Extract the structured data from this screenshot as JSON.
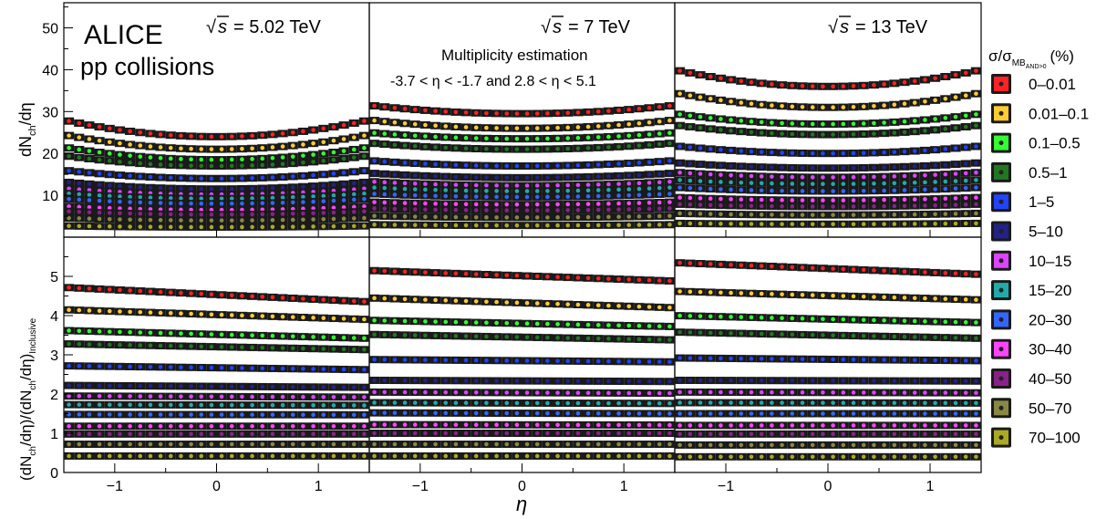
{
  "chart_data": {
    "type": "scatter",
    "figure_labels": {
      "experiment": "ALICE",
      "system": "pp collisions",
      "multiplicity_estimation_title": "Multiplicity estimation",
      "multiplicity_estimation_range": "-3.7 < η < -1.7 and 2.8 < η < 5.1",
      "x_axis_label": "η"
    },
    "y_axes": {
      "top": {
        "label_main": "dN",
        "label_sub": "ch",
        "label_tail": "/dη",
        "range": [
          0,
          56
        ],
        "ticks": [
          "10",
          "20",
          "30",
          "40",
          "50"
        ]
      },
      "bottom": {
        "label_open": "(dN",
        "label_sub1": "ch",
        "label_mid": "/dη)/(dN",
        "label_sub2": "ch",
        "label_close": "/dη)",
        "label_sub3": "Inclusive",
        "range": [
          0,
          6
        ],
        "ticks": [
          "1",
          "2",
          "3",
          "4",
          "5"
        ]
      }
    },
    "x_axis": {
      "range": [
        -1.5,
        1.5
      ],
      "ticks": [
        "−1",
        "0",
        "1"
      ]
    },
    "legend": {
      "title_main": "σ/σ",
      "title_sub": "MB",
      "title_subsub": "AND>0",
      "title_unit": "(%)",
      "placement": "right",
      "entries": [
        {
          "label": "0–0.01",
          "color": "#ff2222"
        },
        {
          "label": "0.01–0.1",
          "color": "#ffcc33"
        },
        {
          "label": "0.1–0.5",
          "color": "#33ff33"
        },
        {
          "label": "0.5–1",
          "color": "#227722"
        },
        {
          "label": "1–5",
          "color": "#2244ff"
        },
        {
          "label": "5–10",
          "color": "#222288"
        },
        {
          "label": "10–15",
          "color": "#dd44ff"
        },
        {
          "label": "15–20",
          "color": "#22aaaa"
        },
        {
          "label": "20–30",
          "color": "#3366ff"
        },
        {
          "label": "30–40",
          "color": "#ff44ff"
        },
        {
          "label": "40–50",
          "color": "#882288"
        },
        {
          "label": "50–70",
          "color": "#888844"
        },
        {
          "label": "70–100",
          "color": "#aaaa22"
        }
      ]
    },
    "panels": [
      {
        "energy_label": "= 5.02 TeV",
        "top_series": [
          {
            "class": "0–0.01",
            "center": 24.0,
            "edge": 28.0
          },
          {
            "class": "0.01–0.1",
            "center": 21.0,
            "edge": 24.5
          },
          {
            "class": "0.1–0.5",
            "center": 18.5,
            "edge": 21.5
          },
          {
            "class": "0.5–1",
            "center": 17.0,
            "edge": 19.5
          },
          {
            "class": "1–5",
            "center": 14.0,
            "edge": 16.0
          },
          {
            "class": "5–10",
            "center": 11.5,
            "edge": 13.2
          },
          {
            "class": "10–15",
            "center": 10.2,
            "edge": 11.7
          },
          {
            "class": "15–20",
            "center": 9.2,
            "edge": 10.5
          },
          {
            "class": "20–30",
            "center": 8.0,
            "edge": 9.2
          },
          {
            "class": "30–40",
            "center": 6.5,
            "edge": 7.4
          },
          {
            "class": "40–50",
            "center": 5.4,
            "edge": 6.2
          },
          {
            "class": "50–70",
            "center": 4.0,
            "edge": 4.6
          },
          {
            "class": "70–100",
            "center": 2.4,
            "edge": 2.7
          }
        ],
        "bottom_series": [
          {
            "class": "0–0.01",
            "left": 4.72,
            "right": 4.35
          },
          {
            "class": "0.01–0.1",
            "left": 4.15,
            "right": 3.9
          },
          {
            "class": "0.1–0.5",
            "left": 3.62,
            "right": 3.42
          },
          {
            "class": "0.5–1",
            "left": 3.28,
            "right": 3.13
          },
          {
            "class": "1–5",
            "left": 2.72,
            "right": 2.62
          },
          {
            "class": "5–10",
            "left": 2.22,
            "right": 2.17
          },
          {
            "class": "10–15",
            "left": 1.95,
            "right": 1.92
          },
          {
            "class": "15–20",
            "left": 1.73,
            "right": 1.71
          },
          {
            "class": "20–30",
            "left": 1.48,
            "right": 1.47
          },
          {
            "class": "30–40",
            "left": 1.18,
            "right": 1.18
          },
          {
            "class": "40–50",
            "left": 0.98,
            "right": 0.98
          },
          {
            "class": "50–70",
            "left": 0.72,
            "right": 0.72
          },
          {
            "class": "70–100",
            "left": 0.42,
            "right": 0.42
          }
        ]
      },
      {
        "energy_label": "= 7 TeV",
        "top_series": [
          {
            "class": "0–0.01",
            "center": 29.5,
            "edge": 31.5
          },
          {
            "class": "0.01–0.1",
            "center": 26.0,
            "edge": 28.0
          },
          {
            "class": "0.1–0.5",
            "center": 23.5,
            "edge": 25.0
          },
          {
            "class": "0.5–1",
            "center": 21.0,
            "edge": 22.5
          },
          {
            "class": "1–5",
            "center": 17.0,
            "edge": 18.3
          },
          {
            "class": "5–10",
            "center": 14.2,
            "edge": 15.3
          },
          {
            "class": "10–15",
            "center": 12.3,
            "edge": 13.3
          },
          {
            "class": "15–20",
            "center": 11.0,
            "edge": 11.9
          },
          {
            "class": "20–30",
            "center": 9.6,
            "edge": 10.4
          },
          {
            "class": "30–40",
            "center": 7.8,
            "edge": 8.4
          },
          {
            "class": "40–50",
            "center": 6.4,
            "edge": 6.9
          },
          {
            "class": "50–70",
            "center": 4.7,
            "edge": 5.1
          },
          {
            "class": "70–100",
            "center": 2.8,
            "edge": 3.0
          }
        ],
        "bottom_series": [
          {
            "class": "0–0.01",
            "left": 5.15,
            "right": 4.88
          },
          {
            "class": "0.01–0.1",
            "left": 4.45,
            "right": 4.2
          },
          {
            "class": "0.1–0.5",
            "left": 3.88,
            "right": 3.72
          },
          {
            "class": "0.5–1",
            "left": 3.52,
            "right": 3.38
          },
          {
            "class": "1–5",
            "left": 2.88,
            "right": 2.82
          },
          {
            "class": "5–10",
            "left": 2.35,
            "right": 2.32
          },
          {
            "class": "10–15",
            "left": 2.05,
            "right": 2.02
          },
          {
            "class": "15–20",
            "left": 1.78,
            "right": 1.76
          },
          {
            "class": "20–30",
            "left": 1.52,
            "right": 1.5
          },
          {
            "class": "30–40",
            "left": 1.22,
            "right": 1.21
          },
          {
            "class": "40–50",
            "left": 1.0,
            "right": 1.0
          },
          {
            "class": "50–70",
            "left": 0.72,
            "right": 0.72
          },
          {
            "class": "70–100",
            "left": 0.42,
            "right": 0.42
          }
        ]
      },
      {
        "energy_label": "= 13 TeV",
        "top_series": [
          {
            "class": "0–0.01",
            "center": 36.0,
            "edge": 40.0
          },
          {
            "class": "0.01–0.1",
            "center": 31.0,
            "edge": 34.5
          },
          {
            "class": "0.1–0.5",
            "center": 27.0,
            "edge": 29.5
          },
          {
            "class": "0.5–1",
            "center": 24.5,
            "edge": 26.8
          },
          {
            "class": "1–5",
            "center": 20.0,
            "edge": 21.8
          },
          {
            "class": "5–10",
            "center": 16.5,
            "edge": 17.8
          },
          {
            "class": "10–15",
            "center": 14.3,
            "edge": 15.5
          },
          {
            "class": "15–20",
            "center": 12.7,
            "edge": 13.7
          },
          {
            "class": "20–30",
            "center": 11.0,
            "edge": 11.9
          },
          {
            "class": "30–40",
            "center": 8.8,
            "edge": 9.5
          },
          {
            "class": "40–50",
            "center": 7.3,
            "edge": 7.9
          },
          {
            "class": "50–70",
            "center": 5.3,
            "edge": 5.7
          },
          {
            "class": "70–100",
            "center": 3.1,
            "edge": 3.3
          }
        ],
        "bottom_series": [
          {
            "class": "0–0.01",
            "left": 5.35,
            "right": 5.05
          },
          {
            "class": "0.01–0.1",
            "left": 4.62,
            "right": 4.4
          },
          {
            "class": "0.1–0.5",
            "left": 4.0,
            "right": 3.82
          },
          {
            "class": "0.5–1",
            "left": 3.58,
            "right": 3.42
          },
          {
            "class": "1–5",
            "left": 2.92,
            "right": 2.85
          },
          {
            "class": "5–10",
            "left": 2.35,
            "right": 2.33
          },
          {
            "class": "10–15",
            "left": 2.05,
            "right": 2.03
          },
          {
            "class": "15–20",
            "left": 1.78,
            "right": 1.77
          },
          {
            "class": "20–30",
            "left": 1.5,
            "right": 1.5
          },
          {
            "class": "30–40",
            "left": 1.2,
            "right": 1.2
          },
          {
            "class": "40–50",
            "left": 0.98,
            "right": 0.98
          },
          {
            "class": "50–70",
            "left": 0.7,
            "right": 0.7
          },
          {
            "class": "70–100",
            "left": 0.4,
            "right": 0.4
          }
        ]
      }
    ]
  }
}
